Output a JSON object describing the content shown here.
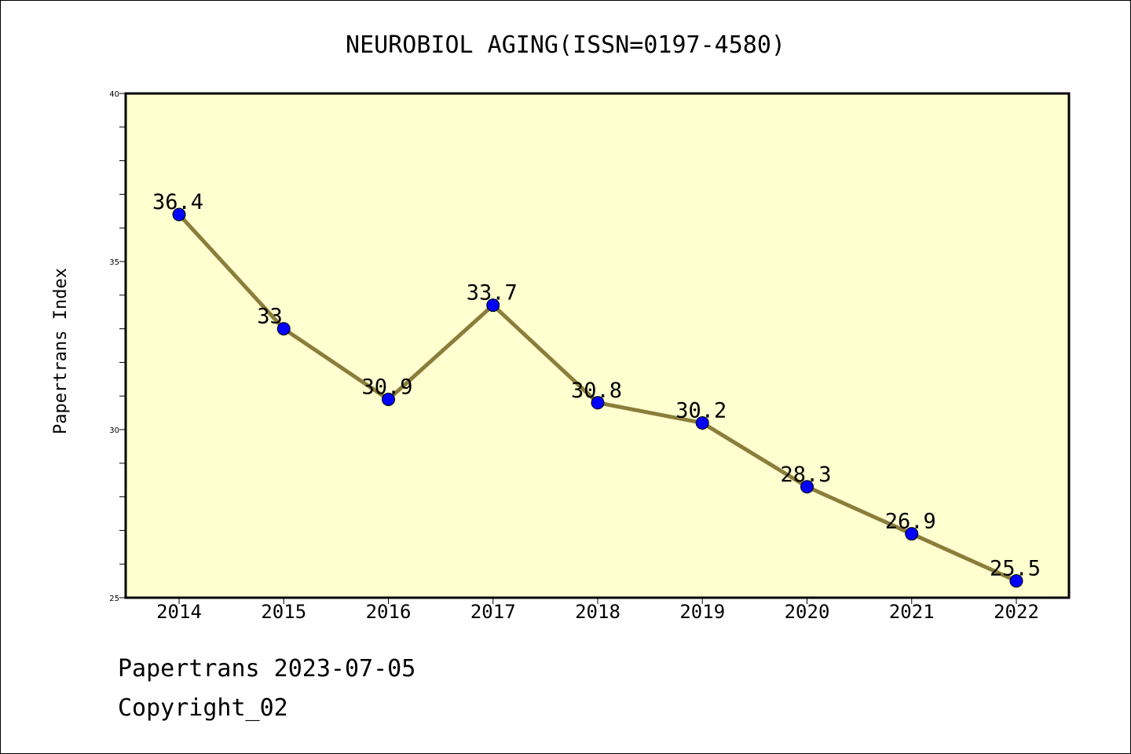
{
  "chart_data": {
    "type": "line",
    "title": "NEUROBIOL AGING(ISSN=0197-4580)",
    "xlabel": "",
    "ylabel": "Papertrans Index",
    "categories": [
      "2014",
      "2015",
      "2016",
      "2017",
      "2018",
      "2019",
      "2020",
      "2021",
      "2022"
    ],
    "values": [
      36.4,
      33,
      30.9,
      33.7,
      30.8,
      30.2,
      28.3,
      26.9,
      25.5
    ],
    "data_labels": [
      "36.4",
      "33",
      "30.9",
      "33.7",
      "30.8",
      "30.2",
      "28.3",
      "26.9",
      "25.5"
    ],
    "ylim": [
      25,
      40
    ],
    "yticks": [
      "25",
      "30",
      "35",
      "40"
    ],
    "grid": false,
    "colors": {
      "line": "#8B7D3A",
      "marker": "#0000FF",
      "plot_background": "#FFFFD0"
    }
  },
  "footer": {
    "line1": "Papertrans 2023-07-05",
    "line2": "Copyright_02"
  }
}
